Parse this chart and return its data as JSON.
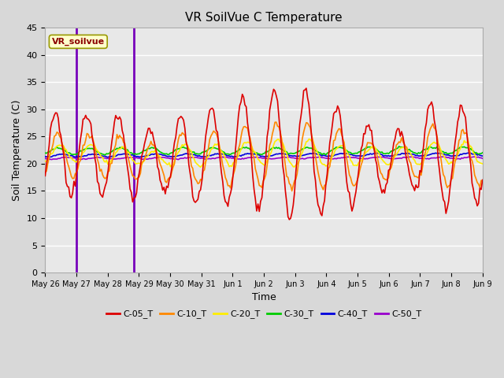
{
  "title": "VR SoilVue C Temperature",
  "xlabel": "Time",
  "ylabel": "Soil Temperature (C)",
  "ylim": [
    0,
    45
  ],
  "yticks": [
    0,
    5,
    10,
    15,
    20,
    25,
    30,
    35,
    40,
    45
  ],
  "fig_bg": "#d8d8d8",
  "plot_bg": "#e8e8e8",
  "grid_color": "#ffffff",
  "legend_label": "VR_soilvue",
  "series_order": [
    "C-05_T",
    "C-10_T",
    "C-20_T",
    "C-30_T",
    "C-40_T",
    "C-50_T"
  ],
  "series_colors": {
    "C-05_T": "#dd0000",
    "C-10_T": "#ff8800",
    "C-20_T": "#ffee00",
    "C-30_T": "#00cc00",
    "C-40_T": "#0000dd",
    "C-50_T": "#9900cc"
  },
  "series_lw": {
    "C-05_T": 1.2,
    "C-10_T": 1.2,
    "C-20_T": 1.2,
    "C-30_T": 1.2,
    "C-40_T": 1.2,
    "C-50_T": 1.2
  },
  "xtick_labels": [
    "May 26",
    "May 27",
    "May 28",
    "May 29",
    "May 30",
    "May 31",
    "Jun 1",
    "Jun 2",
    "Jun 3",
    "Jun 4",
    "Jun 5",
    "Jun 6",
    "Jun 7",
    "Jun 8",
    "Jun 9"
  ],
  "n_days": 14,
  "vline_positions": [
    1.0,
    2.85
  ],
  "vline_color": "#7700bb",
  "vline_lw": 2.0
}
